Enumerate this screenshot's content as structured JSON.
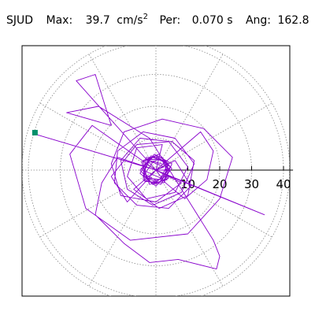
{
  "header": {
    "station": "SJUD",
    "max_label": "Max:",
    "max_value": "39.7",
    "max_unit_base": "cm/s",
    "max_unit_exp": "2",
    "per_label": "Per:",
    "per_value": "0.070 s",
    "ang_label": "Ang:",
    "ang_value": "162.8"
  },
  "chart_data": {
    "type": "line",
    "title": "SJUD Max: 39.7 cm/s2 Per: 0.070 s Ang: 162.8",
    "coordinate_system": "polar",
    "r_ticks": [
      0,
      10,
      20,
      30,
      40
    ],
    "r_tick_labels": [
      "10",
      "20",
      "30",
      "40"
    ],
    "r_max": 42,
    "angular_grid_step_deg": 30,
    "grid": true,
    "peak": {
      "r": 39.7,
      "angle_deg": 162.8,
      "marker": "square"
    },
    "colors": {
      "trace": "#8800cc",
      "peak_marker": "#00906a",
      "grid": "#888888",
      "axis": "#000000"
    },
    "series": [
      {
        "values": [
          [
            0,
            0
          ],
          [
            2.5,
            1
          ],
          [
            -1,
            2.5
          ],
          [
            -3,
            -0.5
          ],
          [
            1.5,
            -2.5
          ],
          [
            3.5,
            1.5
          ],
          [
            -2,
            3
          ],
          [
            -4,
            -1
          ],
          [
            0.5,
            -3.5
          ],
          [
            4,
            0
          ],
          [
            1.5,
            3.5
          ],
          [
            -3.5,
            2
          ],
          [
            -3,
            -2.5
          ],
          [
            2,
            -3
          ],
          [
            4,
            2
          ],
          [
            -1,
            4
          ],
          [
            -4.5,
            0.5
          ],
          [
            -1.5,
            -4
          ],
          [
            3,
            -2
          ],
          [
            3,
            3
          ],
          [
            -2.5,
            3.5
          ],
          [
            -4,
            -2
          ],
          [
            1,
            -4
          ],
          [
            4.5,
            1
          ],
          [
            0,
            4.5
          ],
          [
            -4.5,
            2.5
          ],
          [
            -2,
            -4.5
          ],
          [
            3.5,
            -3
          ],
          [
            3.5,
            2.5
          ],
          [
            -1.5,
            4.5
          ],
          [
            -5,
            -1
          ],
          [
            0,
            -5
          ],
          [
            5,
            0.5
          ],
          [
            1,
            5
          ],
          [
            -4,
            3
          ],
          [
            -3.5,
            -3.5
          ],
          [
            2.5,
            -4
          ],
          [
            5,
            2
          ],
          [
            -0.5,
            5
          ],
          [
            -5,
            0
          ],
          [
            -1,
            -4.5
          ],
          [
            4,
            -2.5
          ],
          [
            2,
            4
          ],
          [
            -3,
            4
          ],
          [
            -4,
            -3
          ],
          [
            1.5,
            -4.5
          ],
          [
            4.5,
            0
          ],
          [
            0,
            0
          ],
          [
            2,
            8
          ],
          [
            -6,
            7
          ],
          [
            -9,
            -2
          ],
          [
            -3,
            -9
          ],
          [
            6,
            -7
          ],
          [
            10,
            1
          ],
          [
            4,
            9
          ],
          [
            -5,
            10
          ],
          [
            -11,
            3
          ],
          [
            -9,
            -6
          ],
          [
            -1,
            -11
          ],
          [
            8,
            -7
          ],
          [
            12,
            2
          ],
          [
            6,
            10
          ],
          [
            -4,
            12
          ],
          [
            -12,
            6
          ],
          [
            -13,
            -4
          ],
          [
            -6,
            -11
          ],
          [
            4,
            -12
          ],
          [
            11,
            -5
          ],
          [
            6,
            3
          ],
          [
            0,
            0
          ],
          [
            -20,
            14
          ],
          [
            -27,
            5
          ],
          [
            -22,
            -12
          ],
          [
            -8,
            -22
          ],
          [
            10,
            -20
          ],
          [
            20,
            -9
          ],
          [
            24,
            4
          ],
          [
            15,
            13
          ],
          [
            2,
            16
          ],
          [
            -10,
            12
          ],
          [
            -14,
            2
          ],
          [
            -11,
            -8
          ],
          [
            0,
            -10
          ],
          [
            8,
            -4
          ],
          [
            0,
            0
          ],
          [
            -25,
            28
          ],
          [
            -19,
            30
          ],
          [
            -14,
            14
          ],
          [
            -28,
            18
          ],
          [
            -18,
            20
          ],
          [
            -2,
            10
          ],
          [
            18,
            -22
          ],
          [
            20,
            -27
          ],
          [
            19,
            -31
          ],
          [
            7,
            -28
          ],
          [
            -2,
            -29
          ],
          [
            -10,
            -23
          ],
          [
            -19,
            -14
          ],
          [
            -17,
            -4
          ],
          [
            -12,
            4
          ],
          [
            0,
            0
          ],
          [
            -37,
            11
          ],
          [
            -6,
            1.8
          ],
          [
            0,
            0
          ],
          [
            34,
            -14
          ],
          [
            2,
            -1
          ],
          [
            0,
            0
          ],
          [
            -9,
            -10
          ],
          [
            -14,
            -2
          ],
          [
            -6,
            8
          ],
          [
            5,
            9
          ],
          [
            12,
            3
          ],
          [
            10,
            -8
          ],
          [
            1,
            -12
          ],
          [
            -7,
            -6
          ],
          [
            0,
            0
          ],
          [
            14,
            12
          ],
          [
            18,
            6
          ],
          [
            16,
            -3
          ],
          [
            9,
            -9
          ],
          [
            3,
            -4
          ],
          [
            0,
            0
          ]
        ]
      }
    ]
  }
}
